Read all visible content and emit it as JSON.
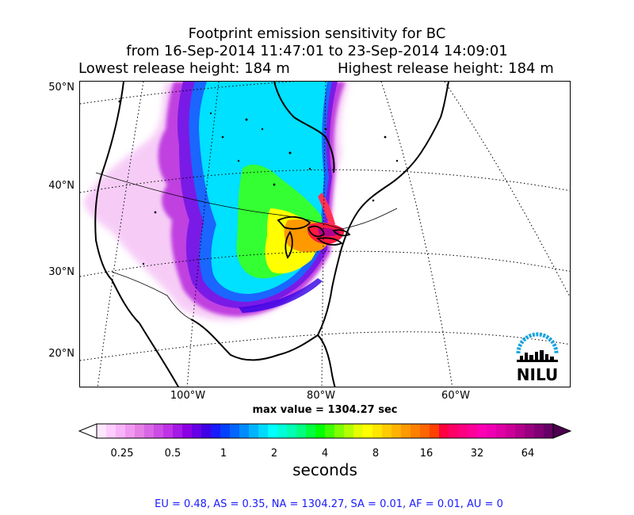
{
  "title": {
    "line1": "Footprint emission sensitivity for BC",
    "line2": "from 16-Sep-2014 11:47:01 to 23-Sep-2014 14:09:01",
    "lowest": "Lowest release height: 184 m",
    "highest": "Highest release height: 184 m"
  },
  "map": {
    "lat_labels": [
      "50°N",
      "40°N",
      "30°N",
      "20°N"
    ],
    "lon_labels": [
      "100°W",
      "80°W",
      "60°W"
    ],
    "max_value_text": "max value = 1304.27 sec",
    "logo_text": "NILU"
  },
  "colorbar": {
    "tick_labels": [
      "0.25",
      "0.5",
      "1",
      "2",
      "4",
      "8",
      "16",
      "32",
      "64"
    ],
    "unit": "seconds",
    "colors": [
      "#ffe6ff",
      "#ffccff",
      "#f9b3f9",
      "#f099f0",
      "#e580e6",
      "#d966e6",
      "#cc4ce6",
      "#bf33e6",
      "#a61ae6",
      "#8c00e6",
      "#6600e6",
      "#4000e6",
      "#1a1aff",
      "#0040ff",
      "#0066ff",
      "#008cff",
      "#00b3ff",
      "#00d9ff",
      "#00ffff",
      "#00ffd9",
      "#00ffb3",
      "#00ff80",
      "#00ff40",
      "#00ff00",
      "#40ff00",
      "#80ff00",
      "#b3ff00",
      "#e6ff00",
      "#ffff00",
      "#ffe600",
      "#ffcc00",
      "#ffb300",
      "#ff9900",
      "#ff8000",
      "#ff6600",
      "#ff4000",
      "#ff0040",
      "#ff0066",
      "#ff0080",
      "#ff0099",
      "#ff00b3",
      "#f000b3",
      "#e000a6",
      "#cc0099",
      "#b3008c",
      "#990080",
      "#800073",
      "#660066"
    ]
  },
  "regional_summary": "EU = 0.48,  AS = 0.35,  NA = 1304.27,  SA = 0.01,  AF = 0.01,  AU = 0"
}
